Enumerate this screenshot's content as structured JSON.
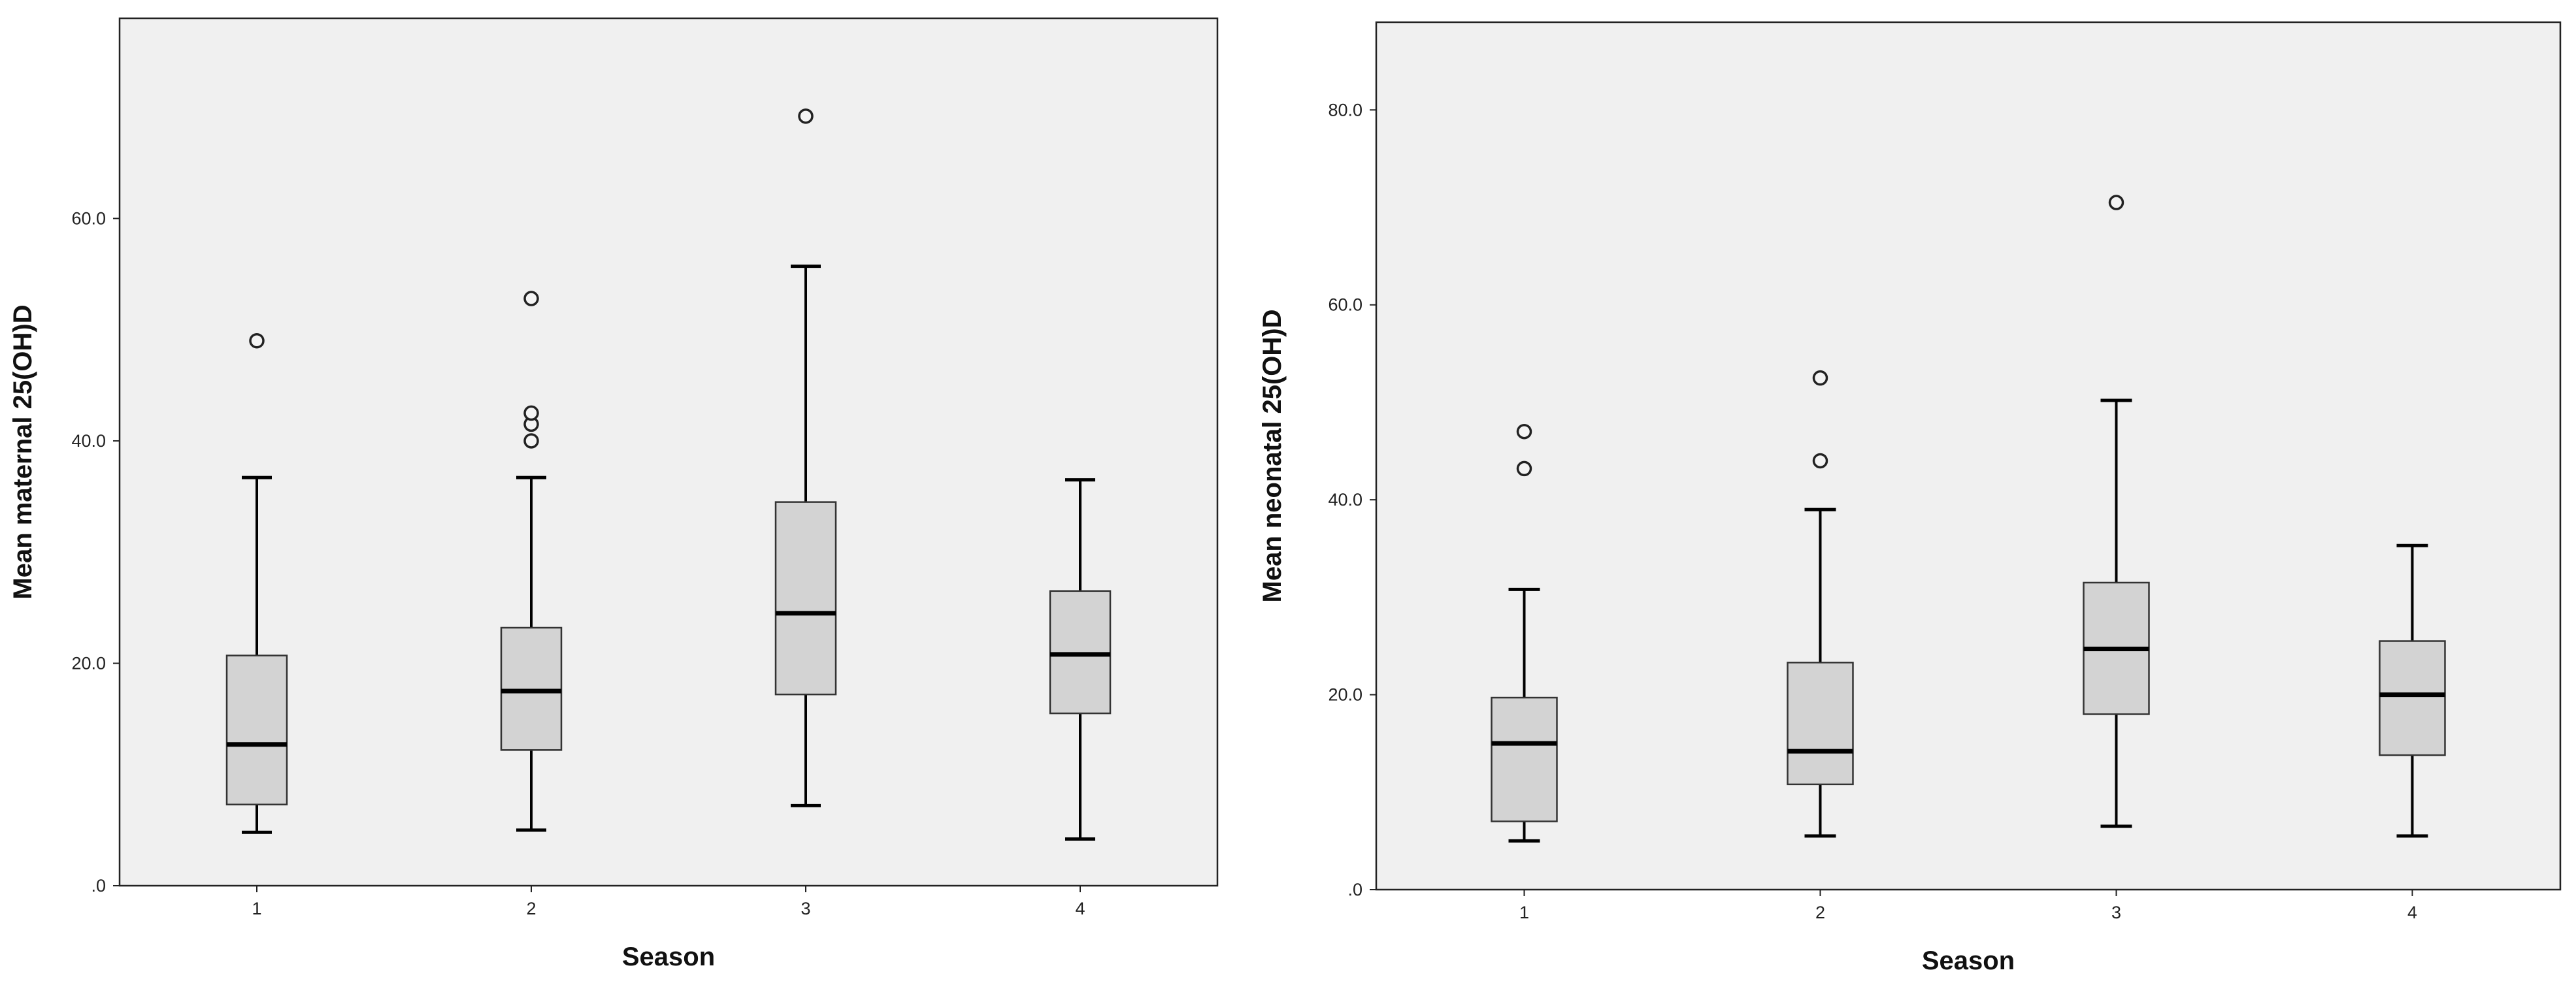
{
  "chart_data": [
    {
      "type": "boxplot",
      "xlabel": "Season",
      "ylabel": "Mean maternal 25(OH)D",
      "ylim": [
        0,
        78
      ],
      "yticks": [
        0,
        20,
        40,
        60
      ],
      "ytick_labels": [
        ".0",
        "20.0",
        "40.0",
        "60.0"
      ],
      "categories": [
        "1",
        "2",
        "3",
        "4"
      ],
      "grid": false,
      "colors": {
        "plot_bg": "#f0f0f0",
        "box_fill": "#d3d3d3",
        "stroke": "#000000"
      },
      "boxes": [
        {
          "category": "1",
          "whisker_low": 4.8,
          "q1": 7.3,
          "median": 12.7,
          "q3": 20.7,
          "whisker_high": 36.7,
          "outliers": [
            49.0
          ]
        },
        {
          "category": "2",
          "whisker_low": 5.0,
          "q1": 12.2,
          "median": 17.5,
          "q3": 23.2,
          "whisker_high": 36.7,
          "outliers": [
            40.0,
            41.5,
            42.5,
            52.8
          ]
        },
        {
          "category": "3",
          "whisker_low": 7.2,
          "q1": 17.2,
          "median": 24.5,
          "q3": 34.5,
          "whisker_high": 55.7,
          "outliers": [
            69.2
          ]
        },
        {
          "category": "4",
          "whisker_low": 4.2,
          "q1": 15.5,
          "median": 20.8,
          "q3": 26.5,
          "whisker_high": 36.5,
          "outliers": []
        }
      ]
    },
    {
      "type": "boxplot",
      "xlabel": "Season",
      "ylabel": "Mean neonatal 25(OH)D",
      "ylim": [
        0,
        89
      ],
      "yticks": [
        0,
        20,
        40,
        60,
        80
      ],
      "ytick_labels": [
        ".0",
        "20.0",
        "40.0",
        "60.0",
        "80.0"
      ],
      "categories": [
        "1",
        "2",
        "3",
        "4"
      ],
      "grid": false,
      "colors": {
        "plot_bg": "#f0f0f0",
        "box_fill": "#d3d3d3",
        "stroke": "#000000"
      },
      "boxes": [
        {
          "category": "1",
          "whisker_low": 5.0,
          "q1": 7.0,
          "median": 15.0,
          "q3": 19.7,
          "whisker_high": 30.8,
          "outliers": [
            43.2,
            47.0
          ]
        },
        {
          "category": "2",
          "whisker_low": 5.5,
          "q1": 10.8,
          "median": 14.2,
          "q3": 23.3,
          "whisker_high": 39.0,
          "outliers": [
            44.0,
            52.5
          ]
        },
        {
          "category": "3",
          "whisker_low": 6.5,
          "q1": 18.0,
          "median": 24.7,
          "q3": 31.5,
          "whisker_high": 50.2,
          "outliers": [
            70.5
          ]
        },
        {
          "category": "4",
          "whisker_low": 5.5,
          "q1": 13.8,
          "median": 20.0,
          "q3": 25.5,
          "whisker_high": 35.3,
          "outliers": []
        }
      ]
    }
  ]
}
